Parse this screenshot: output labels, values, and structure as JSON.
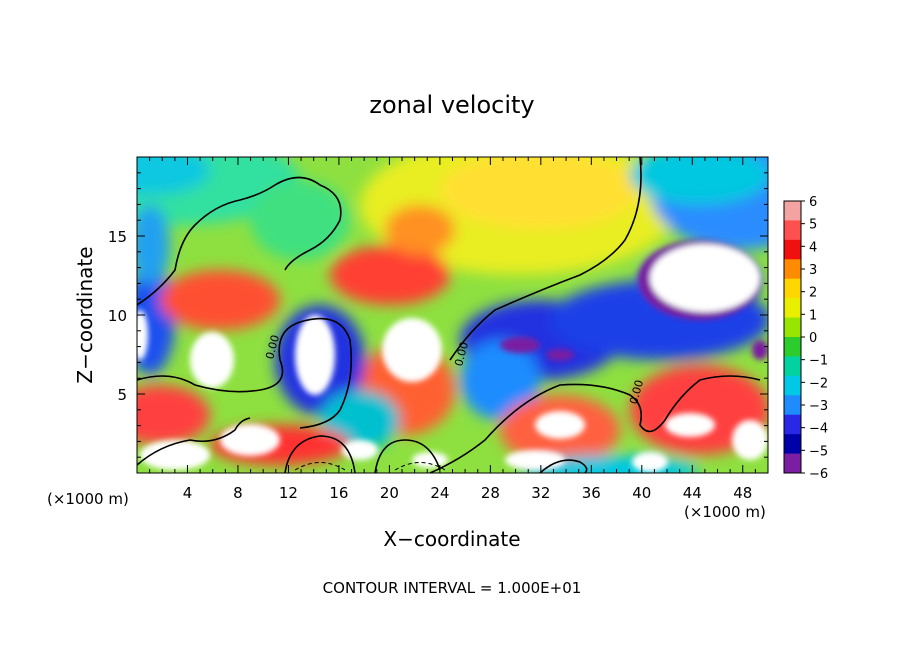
{
  "chart_data": {
    "type": "heatmap",
    "title": "zonal velocity",
    "xlabel": "X−coordinate",
    "ylabel": "Z−coordinate",
    "x_unit_left": "(×1000 m)",
    "x_unit_right": "(×1000 m)",
    "footer": "CONTOUR INTERVAL = 1.000E+01",
    "xlim": [
      0,
      50
    ],
    "ylim": [
      0,
      20
    ],
    "x_ticks": [
      4,
      8,
      12,
      16,
      20,
      24,
      28,
      32,
      36,
      40,
      44,
      48
    ],
    "x_tick_labels": [
      "4",
      "8",
      "12",
      "16",
      "20",
      "24",
      "28",
      "32",
      "36",
      "40",
      "44",
      "48"
    ],
    "y_ticks": [
      5,
      10,
      15
    ],
    "y_tick_labels": [
      "5",
      "10",
      "15"
    ],
    "colorbar": {
      "min": -6,
      "max": 6,
      "labels": [
        "6",
        "5",
        "4",
        "3",
        "2",
        "1",
        "0",
        "−1",
        "−2",
        "−3",
        "−4",
        "−5",
        "−6"
      ],
      "colors": [
        "#f4a3a3",
        "#ff5050",
        "#f01010",
        "#ff8c00",
        "#ffd700",
        "#e8f000",
        "#96e600",
        "#2ccc2c",
        "#00d2a0",
        "#00c8e6",
        "#1e8cff",
        "#2828e6",
        "#0000a8",
        "#7a1fa2"
      ]
    },
    "contour_labels": [
      "0.00",
      "0.00",
      "0.00"
    ],
    "grid": false,
    "legend": "right colorbar"
  }
}
